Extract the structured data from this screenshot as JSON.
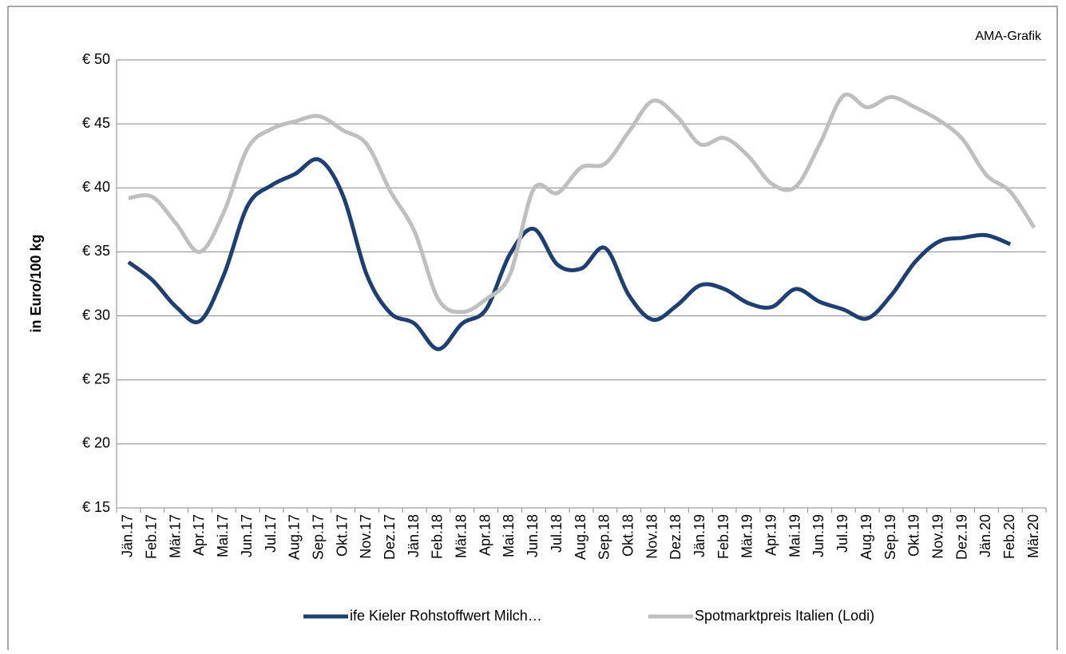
{
  "chart_data": {
    "type": "line",
    "annotation": "AMA-Grafik",
    "y_label": "in Euro/100 kg",
    "categories": [
      "Jän.17",
      "Feb.17",
      "Mär.17",
      "Apr.17",
      "Mai.17",
      "Jun.17",
      "Jul.17",
      "Aug.17",
      "Sep.17",
      "Okt.17",
      "Nov.17",
      "Dez.17",
      "Jän.18",
      "Feb.18",
      "Mär.18",
      "Apr.18",
      "Mai.18",
      "Jun.18",
      "Jul.18",
      "Aug.18",
      "Sep.18",
      "Okt.18",
      "Nov.18",
      "Dez.18",
      "Jän.19",
      "Feb.19",
      "Mär.19",
      "Apr.19",
      "Mai.19",
      "Jun.19",
      "Jul.19",
      "Aug.19",
      "Sep.19",
      "Okt.19",
      "Nov.19",
      "Dez.19",
      "Jän.20",
      "Feb.20",
      "Mär.20"
    ],
    "series": [
      {
        "name": "ife Kieler Rohstoffwert Milch…",
        "color": "#1f3f73",
        "values": [
          34.2,
          32.8,
          30.7,
          29.6,
          33.2,
          38.6,
          40.2,
          41.1,
          42.2,
          39.4,
          33.2,
          30.2,
          29.4,
          27.4,
          29.4,
          30.5,
          34.8,
          36.8,
          34.0,
          33.7,
          35.3,
          31.6,
          29.7,
          30.8,
          32.4,
          32.1,
          31.0,
          30.7,
          32.1,
          31.1,
          30.5,
          29.8,
          31.6,
          34.2,
          35.8,
          36.1,
          36.3,
          35.6,
          null
        ]
      },
      {
        "name": "Spotmarktpreis Italien (Lodi)",
        "color": "#bfbfbf",
        "values": [
          39.2,
          39.3,
          37.2,
          35.0,
          38.1,
          43.1,
          44.6,
          45.2,
          45.6,
          44.5,
          43.4,
          39.7,
          36.6,
          31.3,
          30.3,
          31.3,
          33.2,
          39.9,
          39.6,
          41.6,
          41.9,
          44.4,
          46.8,
          45.6,
          43.4,
          43.9,
          42.5,
          40.3,
          40.1,
          43.4,
          47.2,
          46.3,
          47.1,
          46.3,
          45.3,
          43.8,
          41.0,
          39.7,
          36.9
        ]
      }
    ],
    "ylim": [
      15,
      50
    ],
    "yticks": [
      {
        "value": 15,
        "label": "€ 15"
      },
      {
        "value": 20,
        "label": "€ 20"
      },
      {
        "value": 25,
        "label": "€ 25"
      },
      {
        "value": 30,
        "label": "€ 30"
      },
      {
        "value": 35,
        "label": "€ 35"
      },
      {
        "value": 40,
        "label": "€ 40"
      },
      {
        "value": 45,
        "label": "€ 45"
      },
      {
        "value": 50,
        "label": "€ 50"
      }
    ],
    "grid": true,
    "legend": "bottom"
  }
}
